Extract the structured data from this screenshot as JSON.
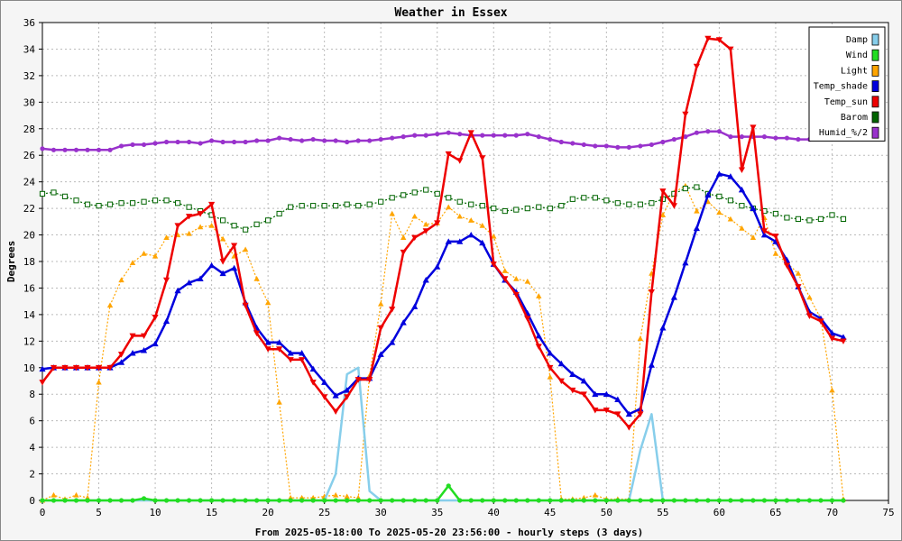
{
  "chart_data": {
    "type": "line",
    "title": "Weather in Essex",
    "xlabel": "From 2025-05-18:00 To 2025-05-20 23:56:00 - hourly steps (3 days)",
    "ylabel": "Degrees",
    "xlim": [
      0,
      75
    ],
    "ylim": [
      0,
      36
    ],
    "xticks": [
      0,
      5,
      10,
      15,
      20,
      25,
      30,
      35,
      40,
      45,
      50,
      55,
      60,
      65,
      70,
      75
    ],
    "yticks": [
      0,
      2,
      4,
      6,
      8,
      10,
      12,
      14,
      16,
      18,
      20,
      22,
      24,
      26,
      28,
      30,
      32,
      34,
      36
    ],
    "grid": true,
    "legend_position": "top-right",
    "series": [
      {
        "name": "Damp",
        "color": "#87ceeb",
        "dash": "",
        "width": 2.5,
        "marker": "none",
        "x": [
          0,
          1,
          2,
          3,
          4,
          5,
          6,
          7,
          8,
          9,
          10,
          11,
          12,
          13,
          14,
          15,
          16,
          17,
          18,
          19,
          20,
          21,
          22,
          23,
          24,
          25,
          26,
          27,
          28,
          29,
          30,
          31,
          32,
          33,
          34,
          35,
          36,
          37,
          38,
          39,
          40,
          41,
          42,
          43,
          44,
          45,
          46,
          47,
          48,
          49,
          50,
          51,
          52,
          53,
          54,
          55,
          56,
          57,
          58,
          59,
          60,
          61,
          62,
          63,
          64,
          65,
          66,
          67,
          68,
          69,
          70,
          71
        ],
        "y": [
          0,
          0,
          0,
          0,
          0,
          0,
          0,
          0,
          0,
          0,
          0,
          0,
          0,
          0,
          0,
          0,
          0,
          0,
          0,
          0,
          0,
          0,
          0,
          0,
          0,
          0,
          2,
          9.5,
          10,
          0.7,
          0,
          0,
          0,
          0,
          0,
          0,
          0,
          0,
          0,
          0,
          0,
          0,
          0,
          0,
          0,
          0,
          0,
          0,
          0,
          0,
          0,
          0,
          0,
          3.8,
          6.5,
          0,
          0,
          0,
          0,
          0,
          0,
          0,
          0,
          0,
          0,
          0,
          0,
          0,
          0,
          0,
          0,
          0
        ]
      },
      {
        "name": "Wind",
        "color": "#22dd22",
        "dash": "",
        "width": 2.5,
        "marker": "dot",
        "x": [
          0,
          1,
          2,
          3,
          4,
          5,
          6,
          7,
          8,
          9,
          10,
          11,
          12,
          13,
          14,
          15,
          16,
          17,
          18,
          19,
          20,
          21,
          22,
          23,
          24,
          25,
          26,
          27,
          28,
          29,
          30,
          31,
          32,
          33,
          34,
          35,
          36,
          37,
          38,
          39,
          40,
          41,
          42,
          43,
          44,
          45,
          46,
          47,
          48,
          49,
          50,
          51,
          52,
          53,
          54,
          55,
          56,
          57,
          58,
          59,
          60,
          61,
          62,
          63,
          64,
          65,
          66,
          67,
          68,
          69,
          70,
          71
        ],
        "y": [
          0,
          0,
          0,
          0,
          0,
          0,
          0,
          0,
          0,
          0.15,
          0,
          0,
          0,
          0,
          0,
          0,
          0,
          0,
          0,
          0,
          0,
          0,
          0,
          0,
          0,
          0,
          0,
          0,
          0,
          0,
          0,
          0,
          0,
          0,
          0,
          0,
          1.1,
          0,
          0,
          0,
          0,
          0,
          0,
          0,
          0,
          0,
          0,
          0,
          0,
          0,
          0,
          0,
          0,
          0,
          0,
          0,
          0,
          0,
          0,
          0,
          0,
          0,
          0,
          0,
          0,
          0,
          0,
          0,
          0,
          0,
          0,
          0
        ]
      },
      {
        "name": "Light",
        "color": "#ffa500",
        "dash": "2,2",
        "width": 1.2,
        "marker": "tri",
        "x": [
          0,
          1,
          2,
          3,
          4,
          5,
          6,
          7,
          8,
          9,
          10,
          11,
          12,
          13,
          14,
          15,
          16,
          17,
          18,
          19,
          20,
          21,
          22,
          23,
          24,
          25,
          26,
          27,
          28,
          29,
          30,
          31,
          32,
          33,
          34,
          35,
          36,
          37,
          38,
          39,
          40,
          41,
          42,
          43,
          44,
          45,
          46,
          47,
          48,
          49,
          50,
          51,
          52,
          53,
          54,
          55,
          56,
          57,
          58,
          59,
          60,
          61,
          62,
          63,
          64,
          65,
          66,
          67,
          68,
          69,
          70,
          71
        ],
        "y": [
          0,
          0.4,
          0.1,
          0.4,
          0.2,
          8.9,
          14.7,
          16.6,
          17.9,
          18.6,
          18.4,
          19.8,
          20,
          20.1,
          20.6,
          20.7,
          19.7,
          18.4,
          18.9,
          16.7,
          14.9,
          7.4,
          0.2,
          0.2,
          0.2,
          0.3,
          0.4,
          0.3,
          0.2,
          9.4,
          14.8,
          21.6,
          19.8,
          21.4,
          20.8,
          20.9,
          22.1,
          21.4,
          21.1,
          20.7,
          19.9,
          17.3,
          16.7,
          16.5,
          15.4,
          9.3,
          0.1,
          0.1,
          0.2,
          0.4,
          0.1,
          0.1,
          0.1,
          12.2,
          17.1,
          21.5,
          23.2,
          23.7,
          21.8,
          22.5,
          21.7,
          21.2,
          20.5,
          19.8,
          21.3,
          18.6,
          17.9,
          17.1,
          15.3,
          13.7,
          8.3,
          0.1
        ]
      },
      {
        "name": "Temp_shade",
        "color": "#0000dd",
        "dash": "",
        "width": 2.5,
        "marker": "tri",
        "x": [
          0,
          1,
          2,
          3,
          4,
          5,
          6,
          7,
          8,
          9,
          10,
          11,
          12,
          13,
          14,
          15,
          16,
          17,
          18,
          19,
          20,
          21,
          22,
          23,
          24,
          25,
          26,
          27,
          28,
          29,
          30,
          31,
          32,
          33,
          34,
          35,
          36,
          37,
          38,
          39,
          40,
          41,
          42,
          43,
          44,
          45,
          46,
          47,
          48,
          49,
          50,
          51,
          52,
          53,
          54,
          55,
          56,
          57,
          58,
          59,
          60,
          61,
          62,
          63,
          64,
          65,
          66,
          67,
          68,
          69,
          70,
          71
        ],
        "y": [
          9.9,
          10,
          10,
          10,
          10,
          10,
          10,
          10.4,
          11.1,
          11.3,
          11.8,
          13.5,
          15.8,
          16.4,
          16.7,
          17.7,
          17.1,
          17.5,
          14.9,
          13,
          11.9,
          11.9,
          11.1,
          11.1,
          9.9,
          8.9,
          7.9,
          8.3,
          9.2,
          9.2,
          11,
          11.9,
          13.4,
          14.6,
          16.6,
          17.6,
          19.5,
          19.5,
          20,
          19.4,
          17.8,
          16.6,
          15.7,
          14.1,
          12.4,
          11.1,
          10.3,
          9.5,
          9,
          8,
          8,
          7.6,
          6.5,
          6.9,
          10.2,
          13,
          15.3,
          17.9,
          20.5,
          23,
          24.6,
          24.4,
          23.4,
          22,
          20,
          19.5,
          18.1,
          16.1,
          14.2,
          13.7,
          12.6,
          12.3
        ]
      },
      {
        "name": "Temp_sun",
        "color": "#ee0000",
        "dash": "",
        "width": 2.5,
        "marker": "vtri",
        "x": [
          0,
          1,
          2,
          3,
          4,
          5,
          6,
          7,
          8,
          9,
          10,
          11,
          12,
          13,
          14,
          15,
          16,
          17,
          18,
          19,
          20,
          21,
          22,
          23,
          24,
          25,
          26,
          27,
          28,
          29,
          30,
          31,
          32,
          33,
          34,
          35,
          36,
          37,
          38,
          39,
          40,
          41,
          42,
          43,
          44,
          45,
          46,
          47,
          48,
          49,
          50,
          51,
          52,
          53,
          54,
          55,
          56,
          57,
          58,
          59,
          60,
          61,
          62,
          63,
          64,
          65,
          66,
          67,
          68,
          69,
          70,
          71
        ],
        "y": [
          8.9,
          10,
          10,
          10,
          10,
          10,
          10,
          11,
          12.4,
          12.4,
          13.8,
          16.6,
          20.7,
          21.4,
          21.6,
          22.3,
          18,
          19.2,
          14.7,
          12.6,
          11.4,
          11.4,
          10.6,
          10.6,
          8.9,
          7.8,
          6.7,
          7.8,
          9.1,
          9.1,
          13,
          14.4,
          18.7,
          19.8,
          20.3,
          20.9,
          26.1,
          25.6,
          27.7,
          25.8,
          17.8,
          16.7,
          15.5,
          13.7,
          11.6,
          10,
          9,
          8.3,
          8,
          6.8,
          6.8,
          6.5,
          5.5,
          6.5,
          15.7,
          23.3,
          22.2,
          29.1,
          32.7,
          34.8,
          34.7,
          34,
          24.9,
          28.1,
          20.3,
          19.9,
          17.7,
          16.1,
          13.9,
          13.5,
          12.2,
          12
        ]
      },
      {
        "name": "Barom",
        "color": "#006400",
        "dash": "2,2",
        "width": 1.2,
        "marker": "sq",
        "x": [
          0,
          1,
          2,
          3,
          4,
          5,
          6,
          7,
          8,
          9,
          10,
          11,
          12,
          13,
          14,
          15,
          16,
          17,
          18,
          19,
          20,
          21,
          22,
          23,
          24,
          25,
          26,
          27,
          28,
          29,
          30,
          31,
          32,
          33,
          34,
          35,
          36,
          37,
          38,
          39,
          40,
          41,
          42,
          43,
          44,
          45,
          46,
          47,
          48,
          49,
          50,
          51,
          52,
          53,
          54,
          55,
          56,
          57,
          58,
          59,
          60,
          61,
          62,
          63,
          64,
          65,
          66,
          67,
          68,
          69,
          70,
          71
        ],
        "y": [
          23.1,
          23.2,
          22.9,
          22.6,
          22.3,
          22.2,
          22.3,
          22.4,
          22.4,
          22.5,
          22.6,
          22.6,
          22.4,
          22.1,
          21.8,
          21.5,
          21.1,
          20.7,
          20.4,
          20.8,
          21.1,
          21.6,
          22.1,
          22.2,
          22.2,
          22.2,
          22.2,
          22.3,
          22.2,
          22.3,
          22.5,
          22.8,
          23,
          23.2,
          23.4,
          23.1,
          22.8,
          22.5,
          22.3,
          22.2,
          22,
          21.8,
          21.9,
          22,
          22.1,
          22,
          22.2,
          22.7,
          22.8,
          22.8,
          22.6,
          22.4,
          22.3,
          22.3,
          22.4,
          22.7,
          23.1,
          23.5,
          23.6,
          23.1,
          22.9,
          22.6,
          22.2,
          22,
          21.8,
          21.6,
          21.3,
          21.2,
          21.1,
          21.2,
          21.5,
          21.2
        ]
      },
      {
        "name": "Humid_%/2",
        "color": "#9932cc",
        "dash": "",
        "width": 2.5,
        "marker": "dot",
        "x": [
          0,
          1,
          2,
          3,
          4,
          5,
          6,
          7,
          8,
          9,
          10,
          11,
          12,
          13,
          14,
          15,
          16,
          17,
          18,
          19,
          20,
          21,
          22,
          23,
          24,
          25,
          26,
          27,
          28,
          29,
          30,
          31,
          32,
          33,
          34,
          35,
          36,
          37,
          38,
          39,
          40,
          41,
          42,
          43,
          44,
          45,
          46,
          47,
          48,
          49,
          50,
          51,
          52,
          53,
          54,
          55,
          56,
          57,
          58,
          59,
          60,
          61,
          62,
          63,
          64,
          65,
          66,
          67,
          68,
          69,
          70,
          71
        ],
        "y": [
          26.5,
          26.4,
          26.4,
          26.4,
          26.4,
          26.4,
          26.4,
          26.7,
          26.8,
          26.8,
          26.9,
          27,
          27,
          27,
          26.9,
          27.1,
          27,
          27,
          27,
          27.1,
          27.1,
          27.3,
          27.2,
          27.1,
          27.2,
          27.1,
          27.1,
          27,
          27.1,
          27.1,
          27.2,
          27.3,
          27.4,
          27.5,
          27.5,
          27.6,
          27.7,
          27.6,
          27.5,
          27.5,
          27.5,
          27.5,
          27.5,
          27.6,
          27.4,
          27.2,
          27,
          26.9,
          26.8,
          26.7,
          26.7,
          26.6,
          26.6,
          26.7,
          26.8,
          27,
          27.2,
          27.4,
          27.7,
          27.8,
          27.8,
          27.4,
          27.4,
          27.4,
          27.4,
          27.3,
          27.3,
          27.2,
          27.2,
          null,
          null,
          null
        ]
      }
    ]
  }
}
